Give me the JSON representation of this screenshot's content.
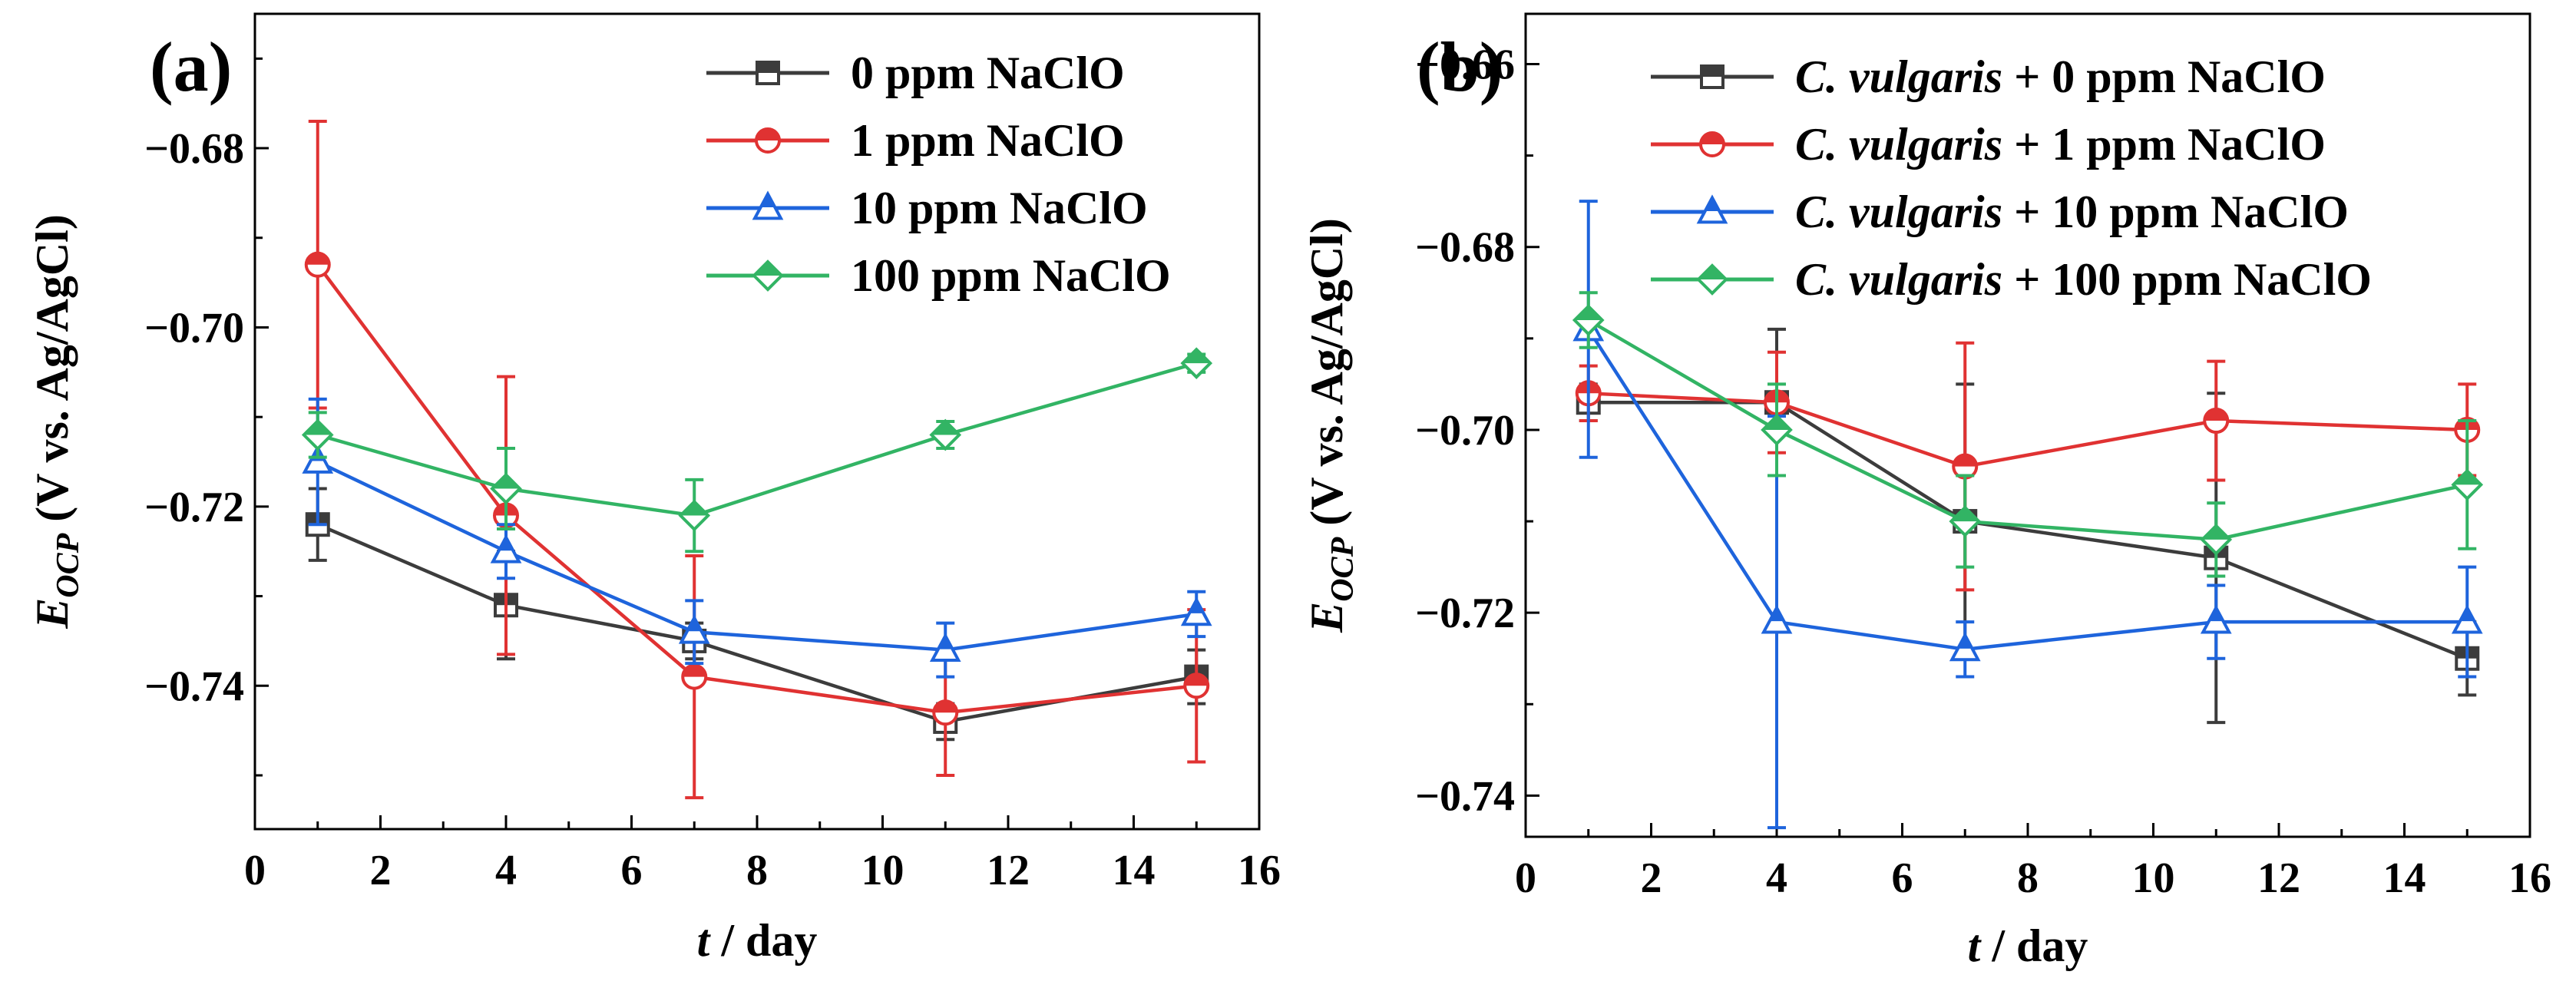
{
  "chart_data": [
    {
      "type": "line",
      "panel_label": "(a)",
      "xlabel_var": "t",
      "xlabel_unit": " / day",
      "ylabel_var": "E",
      "ylabel_sub": "OCP",
      "ylabel_unit": " (V vs. Ag/AgCl)",
      "xlim": [
        0,
        16
      ],
      "ylim": [
        -0.756,
        -0.665
      ],
      "xticks": [
        "0",
        "2",
        "4",
        "6",
        "8",
        "10",
        "12",
        "14",
        "16"
      ],
      "yticks": [
        "−0.68",
        "−0.70",
        "−0.72",
        "−0.74"
      ],
      "ytick_values": [
        -0.68,
        -0.7,
        -0.72,
        -0.74
      ],
      "legend_position": "top-right",
      "x": [
        1,
        4,
        7,
        11,
        15
      ],
      "series": [
        {
          "name_prefix": "",
          "name": "0 ppm NaClO",
          "color": "#3c3c3c",
          "marker": "square",
          "values": [
            -0.722,
            -0.731,
            -0.735,
            -0.744,
            -0.739
          ],
          "errors": [
            0.004,
            0.006,
            0.002,
            0.002,
            0.003
          ]
        },
        {
          "name_prefix": "",
          "name": "1 ppm NaClO",
          "color": "#e03232",
          "marker": "circle",
          "values": [
            -0.693,
            -0.721,
            -0.739,
            -0.743,
            -0.74
          ],
          "errors": [
            0.016,
            0.0155,
            0.0135,
            0.007,
            0.0085
          ]
        },
        {
          "name_prefix": "",
          "name": "10 ppm NaClO",
          "color": "#1e64dc",
          "marker": "triangle",
          "values": [
            -0.715,
            -0.725,
            -0.734,
            -0.736,
            -0.732
          ],
          "errors": [
            0.007,
            0.003,
            0.0035,
            0.003,
            0.0025
          ]
        },
        {
          "name_prefix": "",
          "name": "100 ppm NaClO",
          "color": "#32b464",
          "marker": "diamond",
          "values": [
            -0.712,
            -0.718,
            -0.721,
            -0.712,
            -0.704
          ],
          "errors": [
            0.0025,
            0.0045,
            0.004,
            0.0015,
            0.001
          ]
        }
      ]
    },
    {
      "type": "line",
      "panel_label": "(b)",
      "xlabel_var": "t",
      "xlabel_unit": " / day",
      "ylabel_var": "E",
      "ylabel_sub": "OCP",
      "ylabel_unit": " (V vs. Ag/AgCl)",
      "xlim": [
        0,
        16
      ],
      "ylim": [
        -0.7445,
        -0.6545
      ],
      "xticks": [
        "0",
        "2",
        "4",
        "6",
        "8",
        "10",
        "12",
        "14",
        "16"
      ],
      "yticks": [
        "−0.66",
        "−0.68",
        "−0.70",
        "−0.72",
        "−0.74"
      ],
      "ytick_values": [
        -0.66,
        -0.68,
        -0.7,
        -0.72,
        -0.74
      ],
      "legend_position": "top-right",
      "x": [
        1,
        4,
        7,
        11,
        15
      ],
      "series": [
        {
          "name_prefix": "C. vulgaris",
          "name": " + 0 ppm NaClO",
          "color": "#3c3c3c",
          "marker": "square",
          "values": [
            -0.697,
            -0.697,
            -0.71,
            -0.714,
            -0.725
          ],
          "errors": [
            0.002,
            0.008,
            0.015,
            0.018,
            0.004
          ]
        },
        {
          "name_prefix": "C. vulgaris",
          "name": " + 1 ppm NaClO",
          "color": "#e03232",
          "marker": "circle",
          "values": [
            -0.696,
            -0.697,
            -0.704,
            -0.699,
            -0.7
          ],
          "errors": [
            0.003,
            0.0055,
            0.0135,
            0.0065,
            0.005
          ]
        },
        {
          "name_prefix": "C. vulgaris",
          "name": " + 10 ppm NaClO",
          "color": "#1e64dc",
          "marker": "triangle",
          "values": [
            -0.689,
            -0.721,
            -0.724,
            -0.721,
            -0.721
          ],
          "errors": [
            0.014,
            0.0225,
            0.003,
            0.004,
            0.006
          ]
        },
        {
          "name_prefix": "C. vulgaris",
          "name": " + 100 ppm NaClO",
          "color": "#32b464",
          "marker": "diamond",
          "values": [
            -0.688,
            -0.7,
            -0.71,
            -0.712,
            -0.706
          ],
          "errors": [
            0.003,
            0.005,
            0.005,
            0.004,
            0.007
          ]
        }
      ]
    }
  ]
}
